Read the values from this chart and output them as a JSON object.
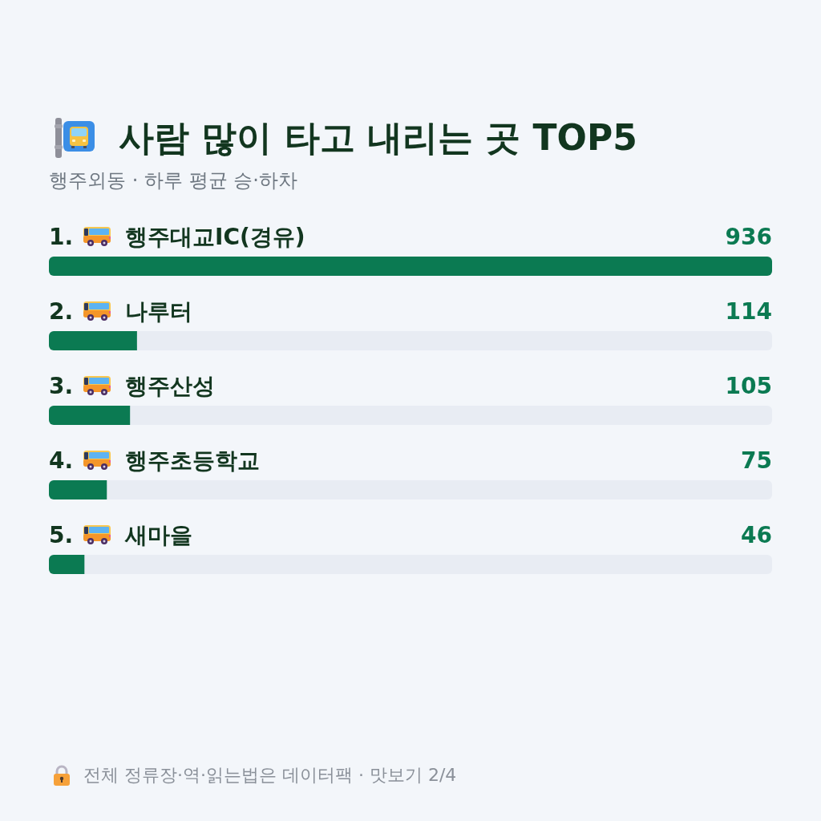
{
  "chart_data": {
    "type": "bar",
    "orientation": "horizontal",
    "title": "사람 많이 타고 내리는 곳 TOP5",
    "subtitle": "행주외동 · 하루 평균 승·하차",
    "categories": [
      "1. 행주대교IC(경유)",
      "2. 나루터",
      "3. 행주산성",
      "4. 행주초등학교",
      "5. 새마을"
    ],
    "values": [
      936,
      114,
      105,
      75,
      46
    ],
    "color": "#0b7a52",
    "data_labels": true,
    "annotations": [
      "전체 정류장·역·읽는법은 데이터팩 · 맛보기 2/4"
    ]
  }
}
